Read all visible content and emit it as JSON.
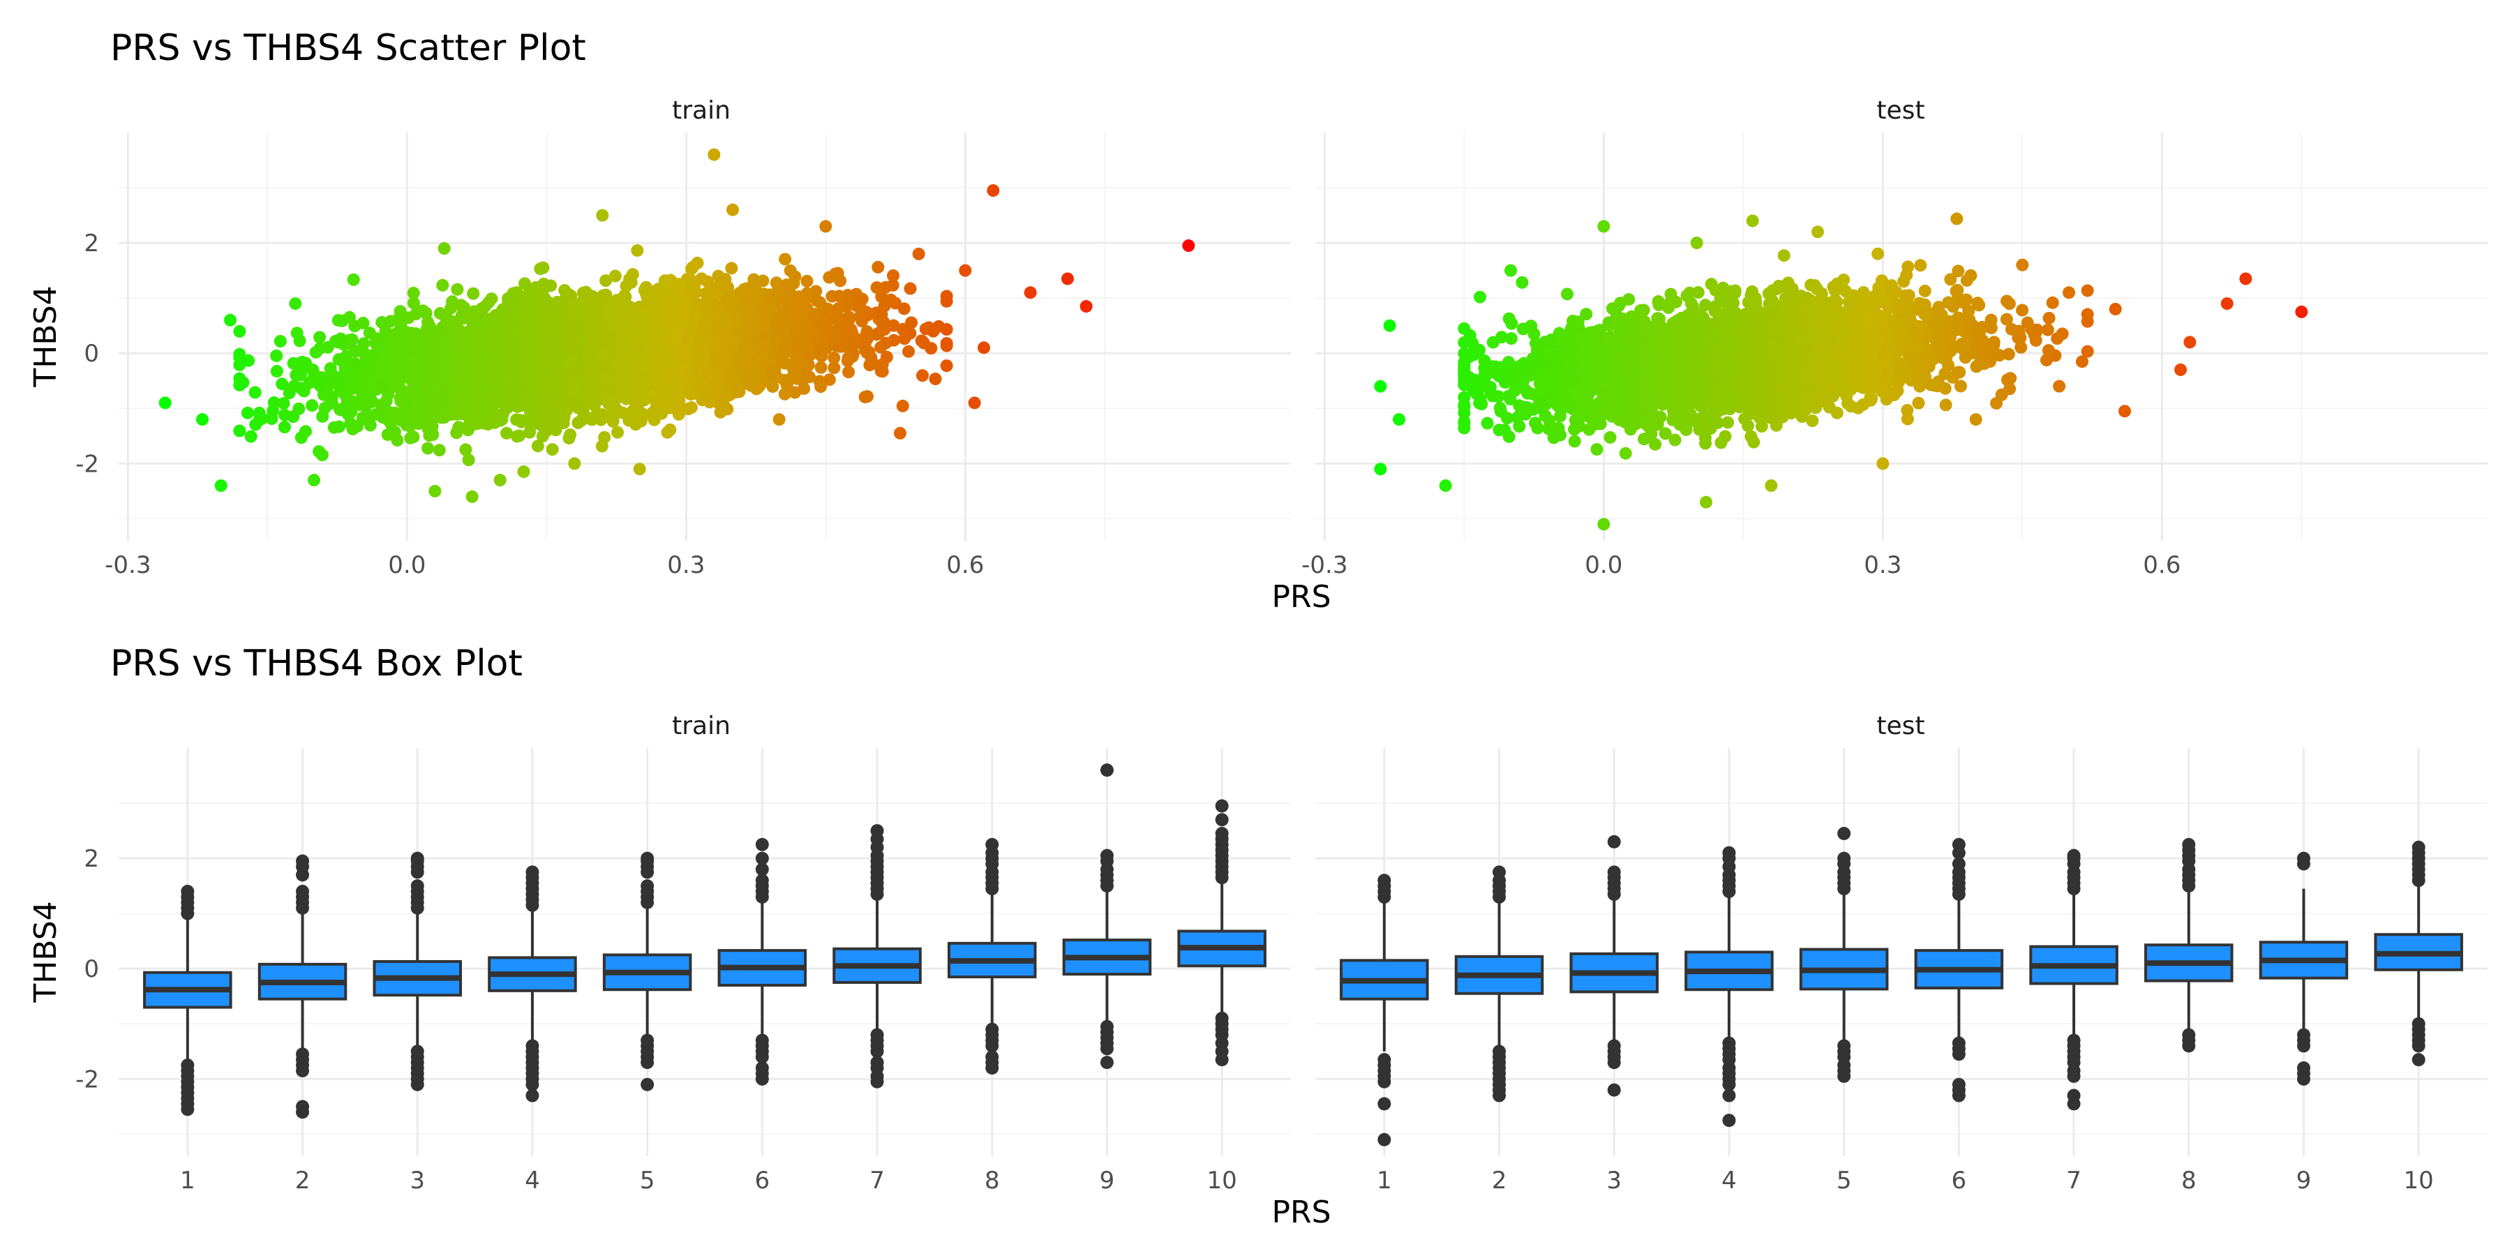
{
  "chart_data": [
    {
      "type": "scatter",
      "title": "PRS vs THBS4 Scatter Plot",
      "xlabel": "PRS",
      "ylabel": "THBS4",
      "facets": [
        "train",
        "test"
      ],
      "xlim": [
        -0.31,
        0.95
      ],
      "ylim": [
        -3.4,
        4.0
      ],
      "x_ticks": [
        -0.3,
        0.0,
        0.3,
        0.6
      ],
      "x_tick_labels": [
        "-0.3",
        "0.0",
        "0.3",
        "0.6"
      ],
      "y_ticks": [
        -2,
        0,
        2
      ],
      "y_tick_labels": [
        "-2",
        "0",
        "2"
      ],
      "color_scale": {
        "low": "#00ff00",
        "mid": "#c8b400",
        "high": "#ff0000",
        "variable": "PRS"
      },
      "trend": {
        "slope": 1.7,
        "intercept": -0.35
      },
      "point_cloud": {
        "train": {
          "x_center": 0.2,
          "x_sd": 0.13,
          "y_resid_sd": 0.5,
          "n_points": 4500,
          "x_range": [
            -0.18,
            0.58
          ]
        },
        "test": {
          "x_center": 0.15,
          "x_sd": 0.12,
          "y_resid_sd": 0.5,
          "n_points": 3200,
          "x_range": [
            -0.15,
            0.52
          ]
        }
      },
      "series": [
        {
          "facet": "train",
          "points": [
            [
              -0.26,
              -0.9
            ],
            [
              -0.19,
              0.6
            ],
            [
              -0.2,
              -2.4
            ],
            [
              -0.22,
              -1.2
            ],
            [
              0.33,
              3.6
            ],
            [
              0.63,
              2.95
            ],
            [
              0.84,
              1.95
            ],
            [
              0.73,
              0.85
            ],
            [
              0.71,
              1.35
            ],
            [
              0.53,
              -1.45
            ],
            [
              0.61,
              -0.9
            ],
            [
              0.35,
              2.6
            ],
            [
              0.21,
              2.5
            ],
            [
              0.07,
              -2.6
            ],
            [
              0.03,
              -2.5
            ],
            [
              0.1,
              -2.3
            ],
            [
              0.67,
              1.1
            ],
            [
              0.6,
              1.5
            ],
            [
              0.45,
              2.3
            ],
            [
              0.18,
              -2.0
            ],
            [
              -0.1,
              -2.3
            ],
            [
              0.55,
              1.8
            ],
            [
              0.62,
              0.1
            ],
            [
              0.25,
              -2.1
            ],
            [
              -0.12,
              0.9
            ],
            [
              0.04,
              1.9
            ],
            [
              0.4,
              -1.2
            ]
          ]
        },
        {
          "facet": "test",
          "points": [
            [
              -0.24,
              -0.6
            ],
            [
              -0.24,
              -2.1
            ],
            [
              -0.17,
              -2.4
            ],
            [
              -0.23,
              0.5
            ],
            [
              0.0,
              -3.1
            ],
            [
              0.11,
              -2.7
            ],
            [
              0.16,
              2.4
            ],
            [
              0.75,
              0.75
            ],
            [
              0.69,
              1.35
            ],
            [
              0.67,
              0.9
            ],
            [
              0.63,
              0.2
            ],
            [
              0.56,
              -1.05
            ],
            [
              0.62,
              -0.3
            ],
            [
              0.23,
              2.2
            ],
            [
              0.18,
              -2.4
            ],
            [
              -0.1,
              1.5
            ],
            [
              0.0,
              2.3
            ],
            [
              0.3,
              -2.0
            ],
            [
              0.45,
              1.6
            ],
            [
              0.5,
              1.1
            ],
            [
              0.55,
              0.8
            ],
            [
              0.4,
              -1.2
            ],
            [
              -0.22,
              -1.2
            ],
            [
              0.1,
              2.0
            ]
          ]
        }
      ]
    },
    {
      "type": "box",
      "title": "PRS vs THBS4 Box Plot",
      "xlabel": "PRS",
      "ylabel": "THBS4",
      "facets": [
        "train",
        "test"
      ],
      "ylim": [
        -3.4,
        4.0
      ],
      "y_ticks": [
        -2,
        0,
        2
      ],
      "y_tick_labels": [
        "-2",
        "0",
        "2"
      ],
      "fill": "#1e90ff",
      "categories": [
        "1",
        "2",
        "3",
        "4",
        "5",
        "6",
        "7",
        "8",
        "9",
        "10"
      ],
      "series": [
        {
          "facet": "train",
          "boxes": [
            {
              "category": "1",
              "q1": -0.7,
              "median": -0.38,
              "q3": -0.07,
              "lower": -1.65,
              "upper": 0.9,
              "outliers": [
                -1.75,
                -1.85,
                -1.95,
                -2.05,
                -2.15,
                -2.25,
                -2.35,
                -2.45,
                -2.55,
                1.0,
                1.1,
                1.2,
                1.3,
                1.4
              ]
            },
            {
              "category": "2",
              "q1": -0.55,
              "median": -0.25,
              "q3": 0.08,
              "lower": -1.5,
              "upper": 1.0,
              "outliers": [
                -1.55,
                -1.65,
                -1.75,
                -1.85,
                -2.5,
                -2.6,
                1.1,
                1.2,
                1.3,
                1.4,
                1.7,
                1.85,
                1.95
              ]
            },
            {
              "category": "3",
              "q1": -0.48,
              "median": -0.17,
              "q3": 0.13,
              "lower": -1.4,
              "upper": 1.05,
              "outliers": [
                -1.5,
                -1.6,
                -1.7,
                -1.8,
                -1.9,
                -2.0,
                -2.1,
                1.1,
                1.2,
                1.3,
                1.4,
                1.5,
                1.75,
                1.85,
                1.95,
                2.0
              ]
            },
            {
              "category": "4",
              "q1": -0.4,
              "median": -0.1,
              "q3": 0.2,
              "lower": -1.3,
              "upper": 1.1,
              "outliers": [
                -1.4,
                -1.5,
                -1.6,
                -1.7,
                -1.8,
                -1.9,
                -2.0,
                -2.1,
                -2.3,
                1.15,
                1.25,
                1.35,
                1.45,
                1.55,
                1.65,
                1.75
              ]
            },
            {
              "category": "5",
              "q1": -0.38,
              "median": -0.07,
              "q3": 0.25,
              "lower": -1.25,
              "upper": 1.15,
              "outliers": [
                -1.3,
                -1.4,
                -1.5,
                -1.6,
                -1.7,
                -2.1,
                1.2,
                1.3,
                1.4,
                1.5,
                1.75,
                1.85,
                1.95,
                2.0
              ]
            },
            {
              "category": "6",
              "q1": -0.3,
              "median": 0.02,
              "q3": 0.33,
              "lower": -1.2,
              "upper": 1.2,
              "outliers": [
                -1.3,
                -1.4,
                -1.5,
                -1.6,
                -1.8,
                -1.9,
                -2.0,
                1.3,
                1.4,
                1.5,
                1.6,
                1.8,
                2.0,
                2.25
              ]
            },
            {
              "category": "7",
              "q1": -0.25,
              "median": 0.05,
              "q3": 0.36,
              "lower": -1.15,
              "upper": 1.25,
              "outliers": [
                -1.2,
                -1.3,
                -1.4,
                -1.5,
                -1.7,
                -1.8,
                -1.95,
                -2.05,
                1.35,
                1.45,
                1.55,
                1.65,
                1.75,
                1.85,
                1.95,
                2.05,
                2.2,
                2.35,
                2.5
              ]
            },
            {
              "category": "8",
              "q1": -0.15,
              "median": 0.14,
              "q3": 0.46,
              "lower": -1.05,
              "upper": 1.35,
              "outliers": [
                -1.1,
                -1.2,
                -1.3,
                -1.4,
                -1.6,
                -1.7,
                -1.8,
                1.45,
                1.55,
                1.65,
                1.75,
                1.9,
                2.0,
                2.1,
                2.25
              ]
            },
            {
              "category": "9",
              "q1": -0.1,
              "median": 0.2,
              "q3": 0.52,
              "lower": -1.0,
              "upper": 1.4,
              "outliers": [
                -1.05,
                -1.15,
                -1.25,
                -1.35,
                -1.45,
                -1.7,
                1.5,
                1.6,
                1.7,
                1.8,
                1.95,
                2.05,
                3.6
              ]
            },
            {
              "category": "10",
              "q1": 0.05,
              "median": 0.38,
              "q3": 0.68,
              "lower": -0.8,
              "upper": 1.6,
              "outliers": [
                -0.9,
                -1.0,
                -1.1,
                -1.2,
                -1.35,
                -1.5,
                -1.65,
                1.65,
                1.75,
                1.85,
                1.95,
                2.05,
                2.15,
                2.25,
                2.35,
                2.45,
                2.7,
                2.95
              ]
            }
          ]
        },
        {
          "facet": "test",
          "boxes": [
            {
              "category": "1",
              "q1": -0.55,
              "median": -0.22,
              "q3": 0.15,
              "lower": -1.5,
              "upper": 1.2,
              "outliers": [
                -1.65,
                -1.75,
                -1.85,
                -1.95,
                -2.05,
                -2.45,
                -3.1,
                1.3,
                1.4,
                1.5,
                1.6
              ]
            },
            {
              "category": "2",
              "q1": -0.45,
              "median": -0.12,
              "q3": 0.22,
              "lower": -1.4,
              "upper": 1.25,
              "outliers": [
                -1.5,
                -1.6,
                -1.7,
                -1.8,
                -1.9,
                -2.0,
                -2.1,
                -2.2,
                -2.3,
                1.3,
                1.4,
                1.5,
                1.6,
                1.75
              ]
            },
            {
              "category": "3",
              "q1": -0.42,
              "median": -0.08,
              "q3": 0.27,
              "lower": -1.35,
              "upper": 1.3,
              "outliers": [
                -1.4,
                -1.5,
                -1.6,
                -1.7,
                -2.2,
                1.35,
                1.45,
                1.55,
                1.65,
                1.75,
                2.3
              ]
            },
            {
              "category": "4",
              "q1": -0.38,
              "median": -0.05,
              "q3": 0.3,
              "lower": -1.3,
              "upper": 1.3,
              "outliers": [
                -1.35,
                -1.45,
                -1.55,
                -1.65,
                -1.8,
                -1.9,
                -2.0,
                -2.1,
                -2.3,
                -2.75,
                1.4,
                1.5,
                1.6,
                1.7,
                1.85,
                2.0,
                2.1
              ]
            },
            {
              "category": "5",
              "q1": -0.37,
              "median": -0.03,
              "q3": 0.35,
              "lower": -1.3,
              "upper": 1.35,
              "outliers": [
                -1.4,
                -1.5,
                -1.6,
                -1.75,
                -1.85,
                -1.95,
                1.45,
                1.55,
                1.65,
                1.75,
                1.9,
                2.0,
                2.45
              ]
            },
            {
              "category": "6",
              "q1": -0.35,
              "median": -0.02,
              "q3": 0.33,
              "lower": -1.25,
              "upper": 1.3,
              "outliers": [
                -1.35,
                -1.45,
                -1.55,
                -2.1,
                -2.2,
                -2.3,
                1.35,
                1.45,
                1.55,
                1.65,
                1.75,
                1.9,
                2.1,
                2.25
              ]
            },
            {
              "category": "7",
              "q1": -0.27,
              "median": 0.05,
              "q3": 0.4,
              "lower": -1.2,
              "upper": 1.35,
              "outliers": [
                -1.3,
                -1.4,
                -1.5,
                -1.6,
                -1.7,
                -1.85,
                -1.95,
                -2.3,
                -2.45,
                1.45,
                1.55,
                1.65,
                1.75,
                1.9,
                2.0,
                2.05
              ]
            },
            {
              "category": "8",
              "q1": -0.22,
              "median": 0.1,
              "q3": 0.43,
              "lower": -1.1,
              "upper": 1.4,
              "outliers": [
                -1.2,
                -1.3,
                -1.4,
                1.5,
                1.6,
                1.7,
                1.8,
                1.95,
                2.05,
                2.15,
                2.25
              ]
            },
            {
              "category": "9",
              "q1": -0.17,
              "median": 0.15,
              "q3": 0.48,
              "lower": -1.1,
              "upper": 1.45,
              "outliers": [
                -1.2,
                -1.3,
                -1.4,
                -1.8,
                -1.9,
                -2.0,
                1.9,
                2.0
              ]
            },
            {
              "category": "10",
              "q1": -0.02,
              "median": 0.27,
              "q3": 0.62,
              "lower": -0.9,
              "upper": 1.55,
              "outliers": [
                -1.0,
                -1.1,
                -1.2,
                -1.3,
                -1.4,
                -1.65,
                1.6,
                1.7,
                1.8,
                1.9,
                2.0,
                2.1,
                2.2
              ]
            }
          ]
        }
      ]
    }
  ]
}
